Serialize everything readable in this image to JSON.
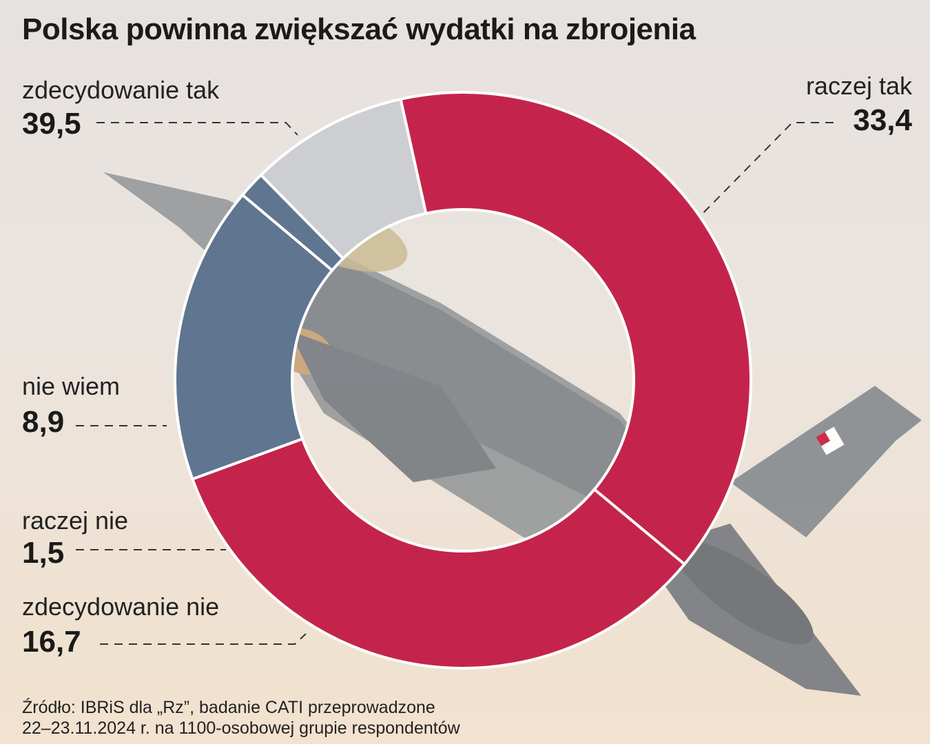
{
  "chart_data": {
    "type": "pie",
    "title": "Polska powinna zwiększać wydatki na zbrojenia",
    "categories": [
      "zdecydowanie tak",
      "raczej tak",
      "zdecydowanie nie",
      "raczej nie",
      "nie wiem"
    ],
    "values": [
      39.5,
      33.4,
      16.7,
      1.5,
      8.9
    ],
    "value_labels": [
      "39,5",
      "33,4",
      "16,7",
      "1,5",
      "8,9"
    ],
    "colors": [
      "#c4244b",
      "#c4244b",
      "#5f7590",
      "#5f7590",
      "#cdced2"
    ],
    "donut": true,
    "start_angle_deg": -12.5,
    "direction": "clockwise"
  },
  "source_line1": "Źródło: IBRiS dla „Rz”, badanie CATI przeprowadzone",
  "source_line2": "22–23.11.2024 r. na 1100-osobowej grupie respondentów",
  "background_image": "f16-fighter-jet-polish-air-force"
}
